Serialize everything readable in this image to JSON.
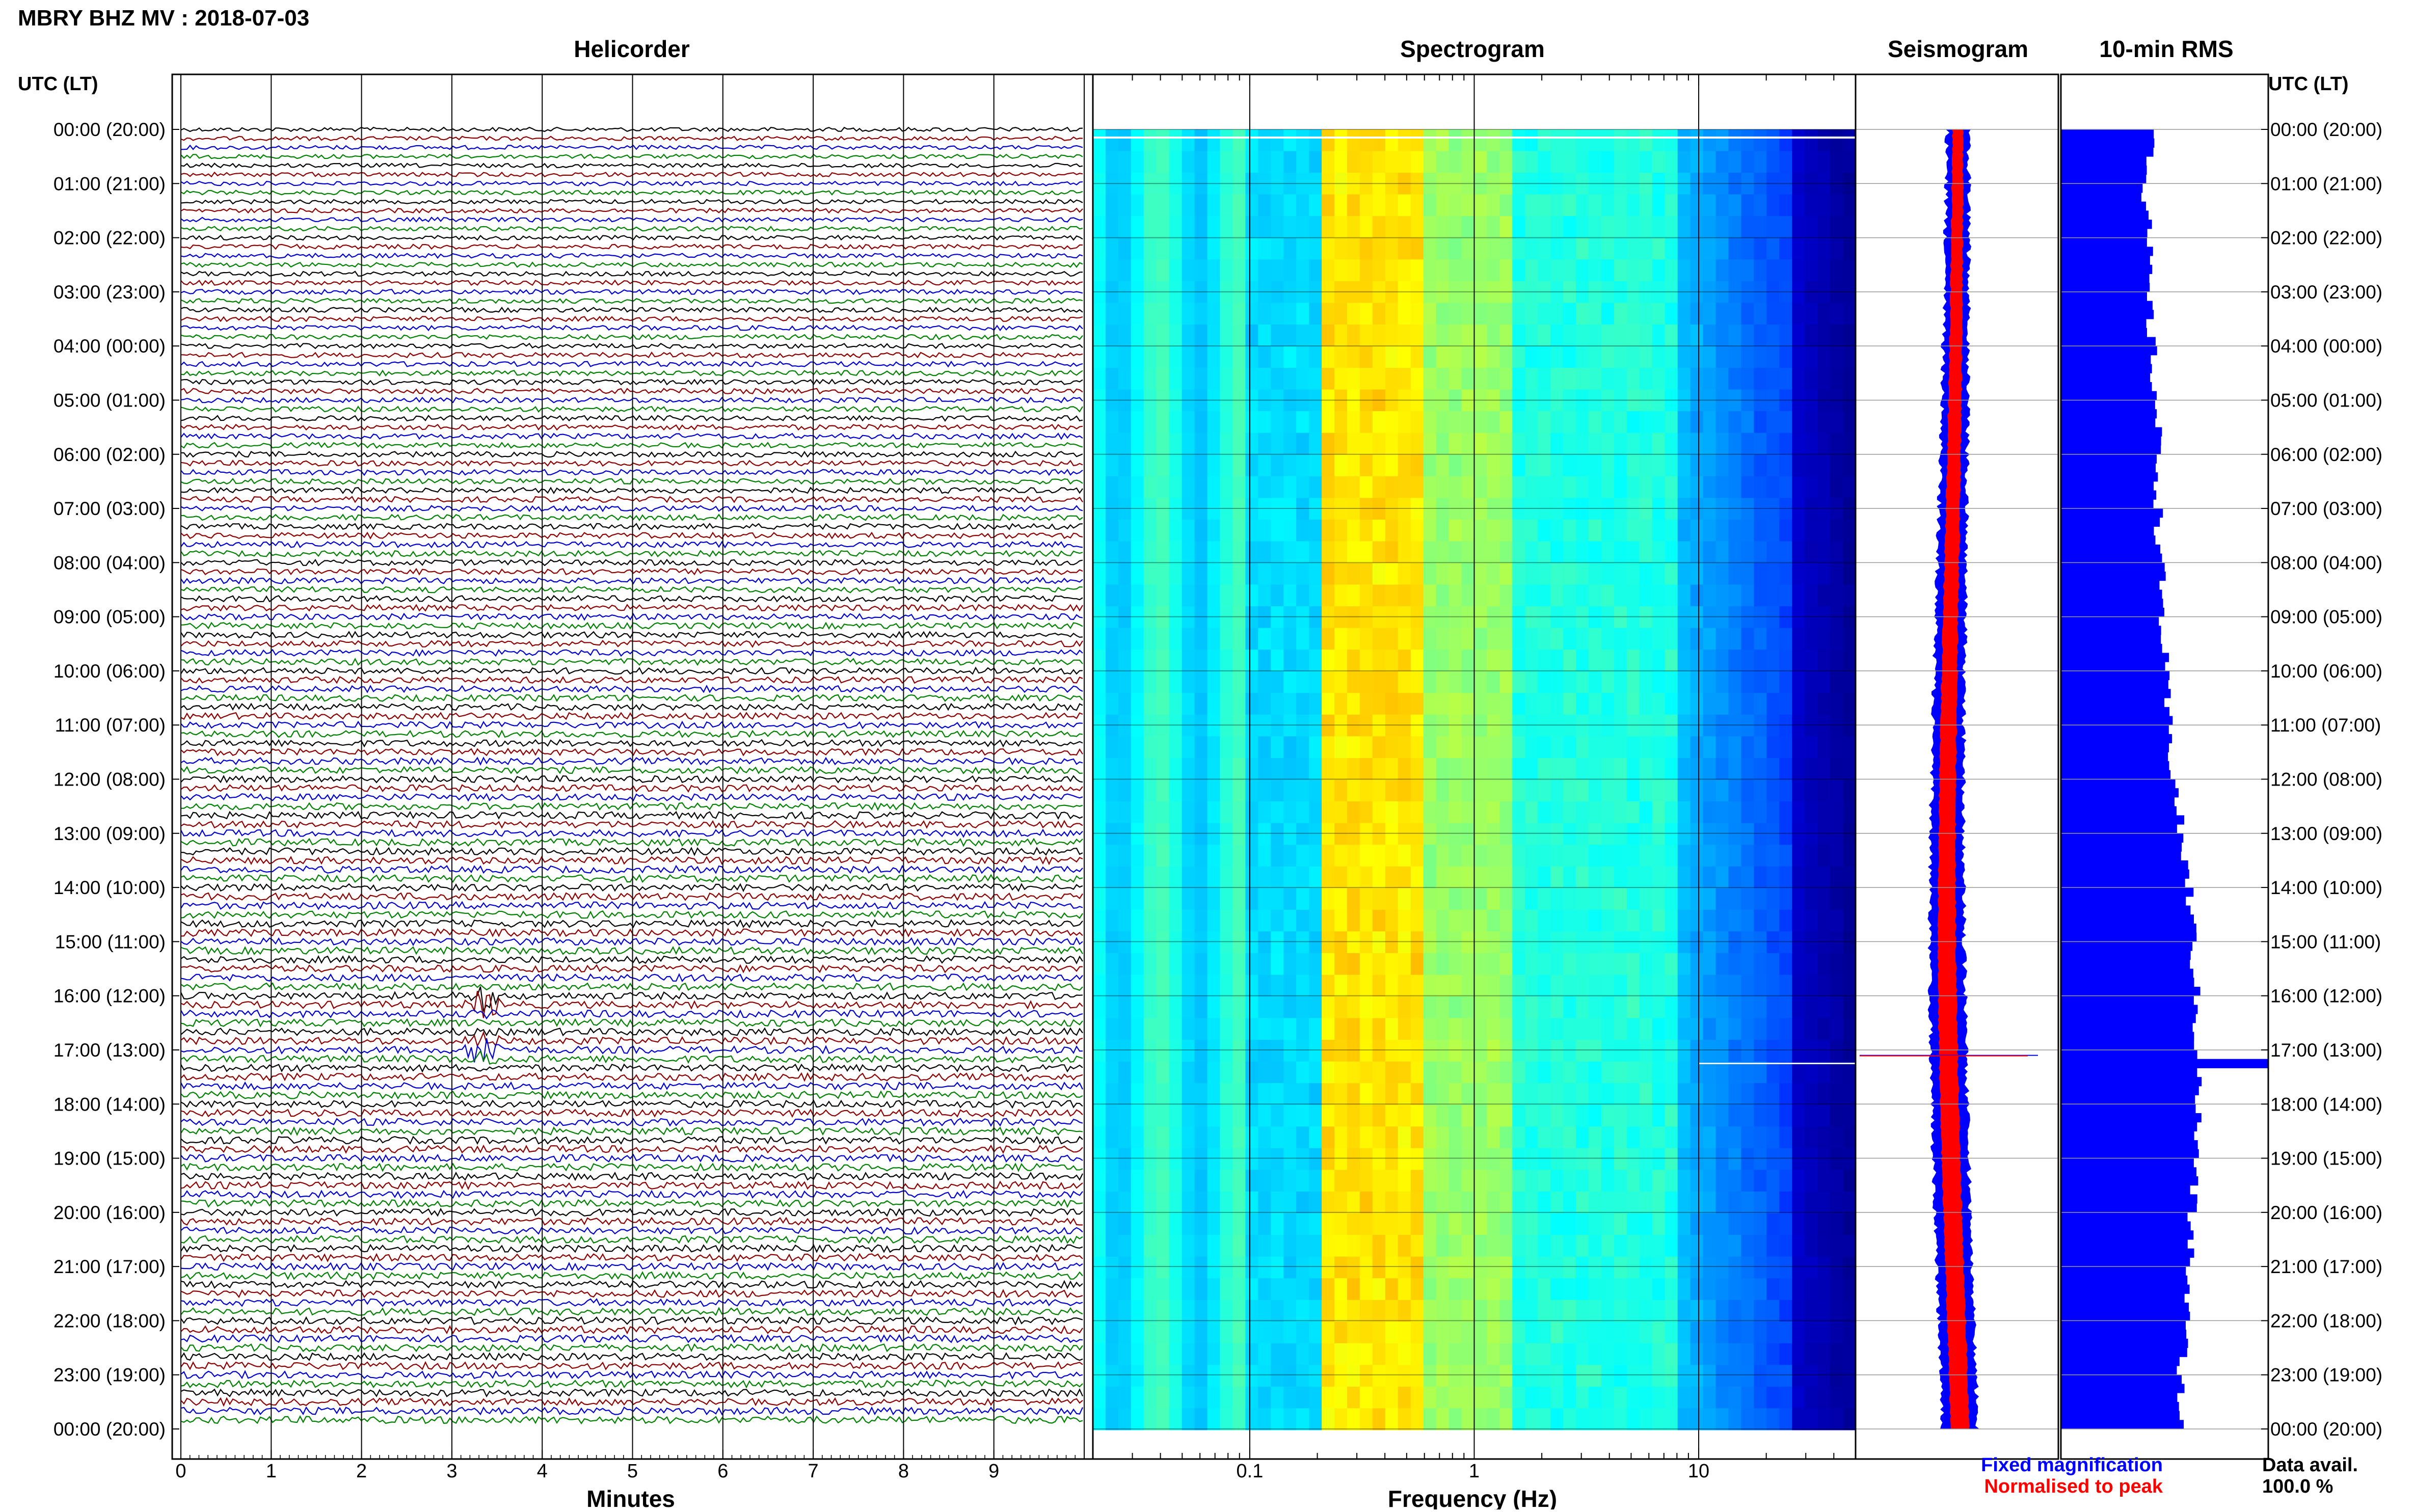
{
  "title": "MBRY BHZ MV : 2018-07-03",
  "panels": {
    "helicorder": "Helicorder",
    "spectrogram": "Spectrogram",
    "seismogram": "Seismogram",
    "rms": "10-min RMS"
  },
  "axis": {
    "time_header": "UTC (LT)",
    "minutes_label": "Minutes",
    "frequency_label": "Frequency (Hz)"
  },
  "legend": {
    "fixed": "Fixed magnification",
    "normalised": "Normalised to peak",
    "fixed_color": "#0000ff",
    "normalised_color": "#ff0000"
  },
  "data_avail": {
    "label": "Data avail.",
    "value": "100.0 %"
  },
  "colors": {
    "trace_cycle": [
      "#000000",
      "#8b0000",
      "#0000cd",
      "#008000"
    ],
    "rms_bar": "#0000ff"
  },
  "chart_data": [
    {
      "type": "line",
      "title": "Helicorder",
      "xlabel": "Minutes",
      "xlim": [
        0,
        10
      ],
      "x_ticks": [
        "0",
        "1",
        "2",
        "3",
        "4",
        "5",
        "6",
        "7",
        "8",
        "9"
      ],
      "time_labels": [
        "00:00 (20:00)",
        "01:00 (21:00)",
        "02:00 (22:00)",
        "03:00 (23:00)",
        "04:00 (00:00)",
        "05:00 (01:00)",
        "06:00 (02:00)",
        "07:00 (03:00)",
        "08:00 (04:00)",
        "09:00 (05:00)",
        "10:00 (06:00)",
        "11:00 (07:00)",
        "12:00 (08:00)",
        "13:00 (09:00)",
        "14:00 (10:00)",
        "15:00 (11:00)",
        "16:00 (12:00)",
        "17:00 (13:00)",
        "18:00 (14:00)",
        "19:00 (15:00)",
        "20:00 (16:00)",
        "21:00 (17:00)",
        "22:00 (18:00)",
        "23:00 (19:00)",
        "00:00 (20:00)"
      ],
      "rows_per_hour": 6,
      "event_hours": [
        16.1,
        17.0
      ]
    },
    {
      "type": "heatmap",
      "title": "Spectrogram",
      "xlabel": "Frequency (Hz)",
      "xscale": "log",
      "xlim": [
        0.02,
        50
      ],
      "x_ticks": [
        "0.1",
        "1",
        "10"
      ]
    },
    {
      "type": "line",
      "title": "Seismogram",
      "series": [
        {
          "name": "Fixed magnification",
          "color": "#0000ff"
        },
        {
          "name": "Normalised to peak",
          "color": "#ff0000"
        }
      ],
      "event_hour": 17.1
    },
    {
      "type": "bar",
      "title": "10-min RMS",
      "hours": [
        0,
        1,
        2,
        3,
        4,
        5,
        6,
        7,
        8,
        9,
        10,
        11,
        12,
        13,
        14,
        15,
        16,
        17,
        18,
        19,
        20,
        21,
        22,
        23,
        24
      ],
      "values": [
        0.46,
        0.41,
        0.42,
        0.42,
        0.44,
        0.46,
        0.47,
        0.47,
        0.48,
        0.49,
        0.5,
        0.52,
        0.55,
        0.58,
        0.62,
        0.64,
        0.65,
        0.66,
        0.66,
        0.65,
        0.63,
        0.62,
        0.6,
        0.58,
        0.58
      ],
      "peak_hour": 17.1,
      "peak_value": 1.0
    }
  ]
}
